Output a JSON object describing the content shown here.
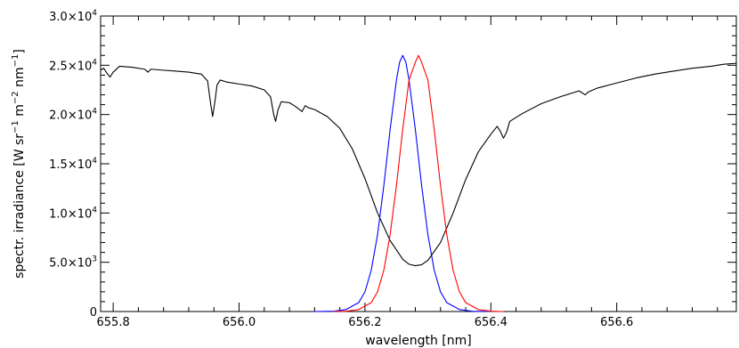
{
  "chart_data": {
    "type": "line",
    "title": "",
    "xlabel": "wavelength [nm]",
    "ylabel": {
      "prefix": "spectr. irradiance [W sr",
      "e1": "−1",
      "mid": " m",
      "e2": "−2",
      "mid2": " nm",
      "e3": "−1",
      "suffix": "]"
    },
    "xlim": [
      655.78,
      656.79
    ],
    "ylim": [
      0,
      30000
    ],
    "grid": false,
    "legend": "none",
    "x_ticks": [
      {
        "value": 655.8,
        "label": "655.8"
      },
      {
        "value": 656.0,
        "label": "656.0"
      },
      {
        "value": 656.2,
        "label": "656.2"
      },
      {
        "value": 656.4,
        "label": "656.4"
      },
      {
        "value": 656.6,
        "label": "656.6"
      }
    ],
    "y_ticks": [
      {
        "value": 0,
        "mant": "0",
        "exp": ""
      },
      {
        "value": 5000,
        "mant": "5.0×10",
        "exp": "3"
      },
      {
        "value": 10000,
        "mant": "1.0×10",
        "exp": "4"
      },
      {
        "value": 15000,
        "mant": "1.5×10",
        "exp": "4"
      },
      {
        "value": 20000,
        "mant": "2.0×10",
        "exp": "4"
      },
      {
        "value": 25000,
        "mant": "2.5×10",
        "exp": "4"
      },
      {
        "value": 30000,
        "mant": "3.0×10",
        "exp": "4"
      }
    ],
    "series": [
      {
        "color": "#000000",
        "points": [
          [
            655.78,
            24500
          ],
          [
            655.785,
            24700
          ],
          [
            655.79,
            24200
          ],
          [
            655.795,
            23800
          ],
          [
            655.8,
            24300
          ],
          [
            655.81,
            24900
          ],
          [
            655.83,
            24800
          ],
          [
            655.85,
            24600
          ],
          [
            655.855,
            24300
          ],
          [
            655.86,
            24600
          ],
          [
            655.88,
            24500
          ],
          [
            655.9,
            24400
          ],
          [
            655.92,
            24300
          ],
          [
            655.94,
            24100
          ],
          [
            655.95,
            23400
          ],
          [
            655.955,
            21000
          ],
          [
            655.958,
            19800
          ],
          [
            655.962,
            21500
          ],
          [
            655.965,
            23000
          ],
          [
            655.97,
            23500
          ],
          [
            655.98,
            23300
          ],
          [
            656.0,
            23100
          ],
          [
            656.02,
            22900
          ],
          [
            656.04,
            22500
          ],
          [
            656.05,
            21800
          ],
          [
            656.055,
            20000
          ],
          [
            656.058,
            19300
          ],
          [
            656.062,
            20500
          ],
          [
            656.067,
            21300
          ],
          [
            656.08,
            21200
          ],
          [
            656.09,
            20800
          ],
          [
            656.1,
            20300
          ],
          [
            656.105,
            20900
          ],
          [
            656.11,
            20700
          ],
          [
            656.12,
            20500
          ],
          [
            656.14,
            19800
          ],
          [
            656.16,
            18600
          ],
          [
            656.18,
            16500
          ],
          [
            656.2,
            13500
          ],
          [
            656.22,
            10000
          ],
          [
            656.24,
            7200
          ],
          [
            656.26,
            5300
          ],
          [
            656.27,
            4800
          ],
          [
            656.28,
            4650
          ],
          [
            656.29,
            4750
          ],
          [
            656.3,
            5200
          ],
          [
            656.32,
            7000
          ],
          [
            656.34,
            10000
          ],
          [
            656.36,
            13400
          ],
          [
            656.38,
            16200
          ],
          [
            656.4,
            18000
          ],
          [
            656.41,
            18800
          ],
          [
            656.415,
            18300
          ],
          [
            656.42,
            17600
          ],
          [
            656.425,
            18200
          ],
          [
            656.43,
            19300
          ],
          [
            656.45,
            20100
          ],
          [
            656.48,
            21100
          ],
          [
            656.51,
            21800
          ],
          [
            656.54,
            22400
          ],
          [
            656.55,
            22000
          ],
          [
            656.555,
            22300
          ],
          [
            656.57,
            22700
          ],
          [
            656.6,
            23200
          ],
          [
            656.63,
            23700
          ],
          [
            656.66,
            24100
          ],
          [
            656.69,
            24400
          ],
          [
            656.72,
            24700
          ],
          [
            656.75,
            24900
          ],
          [
            656.77,
            25100
          ],
          [
            656.79,
            25200
          ]
        ]
      },
      {
        "color": "#0000ff",
        "points": [
          [
            656.12,
            0
          ],
          [
            656.15,
            30
          ],
          [
            656.17,
            200
          ],
          [
            656.19,
            900
          ],
          [
            656.2,
            2000
          ],
          [
            656.21,
            4200
          ],
          [
            656.22,
            7800
          ],
          [
            656.23,
            12800
          ],
          [
            656.24,
            18500
          ],
          [
            656.25,
            23500
          ],
          [
            656.255,
            25300
          ],
          [
            656.26,
            26000
          ],
          [
            656.265,
            25300
          ],
          [
            656.27,
            23500
          ],
          [
            656.28,
            18500
          ],
          [
            656.29,
            12800
          ],
          [
            656.3,
            7800
          ],
          [
            656.31,
            4200
          ],
          [
            656.32,
            2000
          ],
          [
            656.33,
            900
          ],
          [
            656.35,
            200
          ],
          [
            656.37,
            30
          ],
          [
            656.4,
            0
          ]
        ]
      },
      {
        "color": "#ff0000",
        "points": [
          [
            656.15,
            0
          ],
          [
            656.17,
            30
          ],
          [
            656.19,
            200
          ],
          [
            656.21,
            900
          ],
          [
            656.22,
            2000
          ],
          [
            656.23,
            4200
          ],
          [
            656.24,
            7800
          ],
          [
            656.25,
            12800
          ],
          [
            656.26,
            18500
          ],
          [
            656.27,
            23500
          ],
          [
            656.28,
            25300
          ],
          [
            656.285,
            26000
          ],
          [
            656.29,
            25300
          ],
          [
            656.3,
            23500
          ],
          [
            656.31,
            18500
          ],
          [
            656.32,
            12800
          ],
          [
            656.33,
            7800
          ],
          [
            656.34,
            4200
          ],
          [
            656.35,
            2000
          ],
          [
            656.36,
            900
          ],
          [
            656.38,
            200
          ],
          [
            656.4,
            30
          ],
          [
            656.42,
            0
          ]
        ]
      }
    ]
  }
}
